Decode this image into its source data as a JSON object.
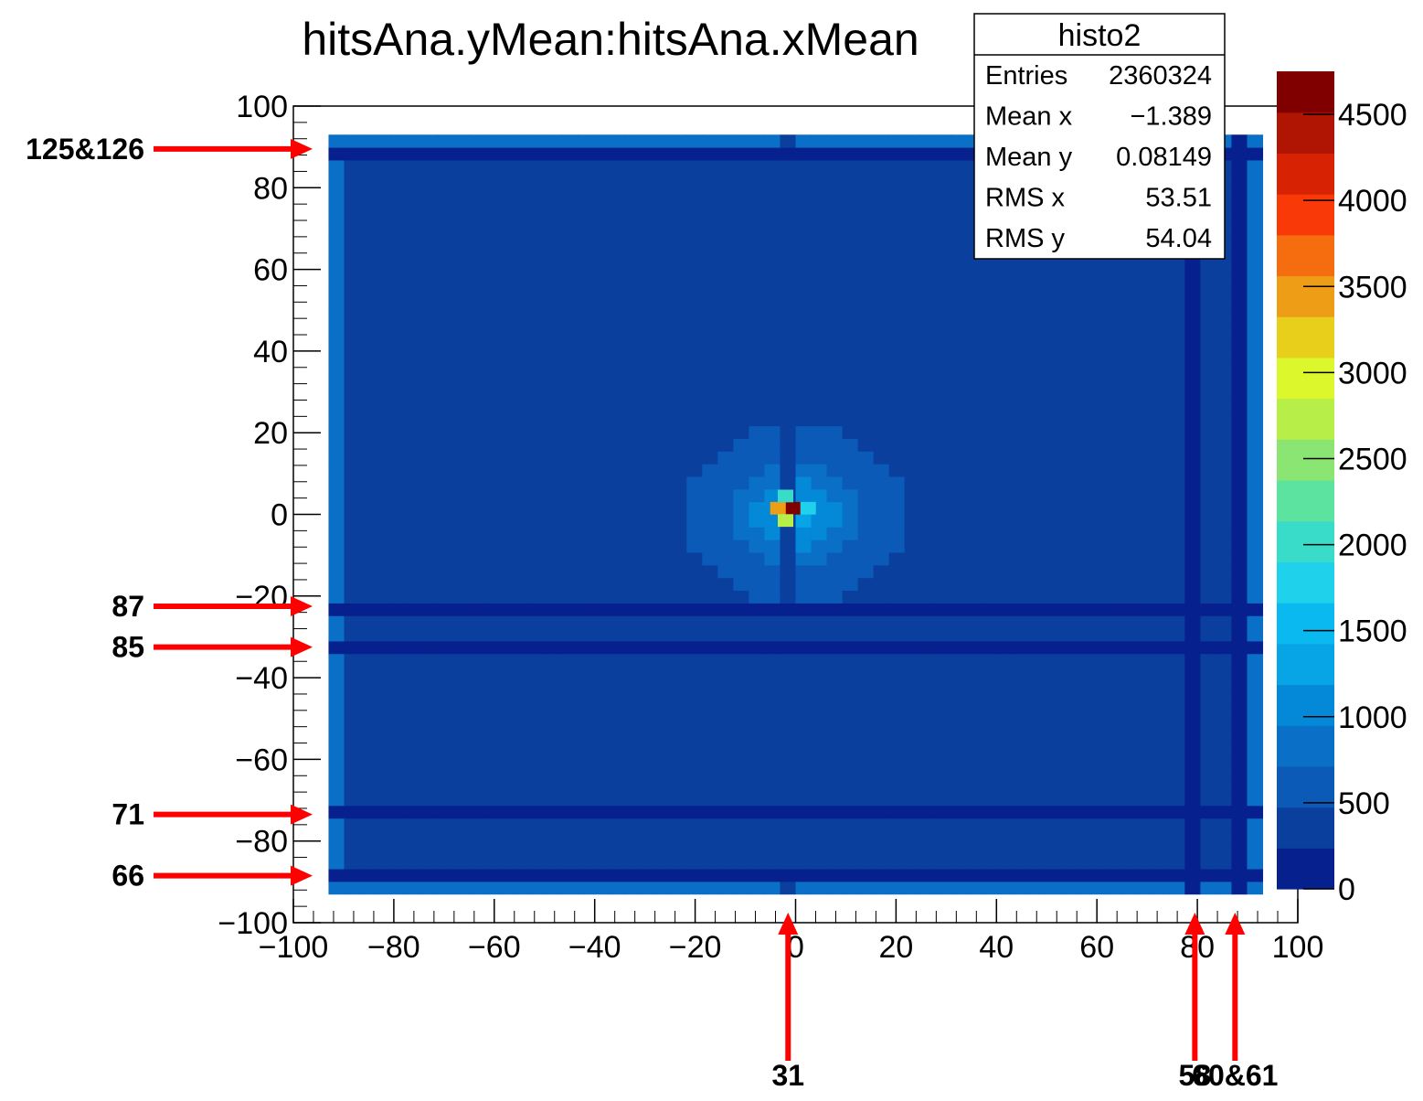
{
  "chart_data": {
    "type": "heatmap",
    "title": "hitsAna.yMean:hitsAna.xMean",
    "xlabel": "",
    "ylabel": "",
    "xlim": [
      -100,
      100
    ],
    "ylim": [
      -100,
      100
    ],
    "x_ticks": [
      -100,
      -80,
      -60,
      -40,
      -20,
      0,
      20,
      40,
      60,
      80,
      100
    ],
    "y_ticks": [
      -100,
      -80,
      -60,
      -40,
      -20,
      0,
      20,
      40,
      60,
      80,
      100
    ],
    "color_scale": {
      "min": 0,
      "max": 4750,
      "ticks": [
        0,
        500,
        1000,
        1500,
        2000,
        2500,
        3000,
        3500,
        4000,
        4500
      ],
      "colors": [
        "#06208e",
        "#0a3f9e",
        "#0b5ab8",
        "#0a6fc6",
        "#0389d7",
        "#07a4e6",
        "#0ab9ef",
        "#1fd1ea",
        "#39dcc8",
        "#5de3a0",
        "#8ae573",
        "#b7ee48",
        "#dcf72c",
        "#e8cf1c",
        "#ee9d17",
        "#f56d0f",
        "#f93a08",
        "#d72303",
        "#b01402",
        "#800000"
      ]
    },
    "background_value": 450,
    "features": {
      "vertical_stripes": [
        {
          "x": 79.5,
          "value": 180
        },
        {
          "x": 87.5,
          "value": 120
        },
        {
          "x": -0.5,
          "value": 350
        }
      ],
      "horizontal_stripes": [
        {
          "y": 89.5,
          "value": 150
        },
        {
          "y": -22.5,
          "value": 180
        },
        {
          "y": -32.5,
          "value": 200
        },
        {
          "y": -73.5,
          "value": 190
        },
        {
          "y": -88.5,
          "value": 200
        }
      ],
      "hotspot": {
        "x": 0,
        "y": 0,
        "peak": 4700,
        "cells": [
          {
            "x": -0.5,
            "y": 1.5,
            "value": 4700
          },
          {
            "x": -3.5,
            "y": 1.5,
            "value": 3400
          },
          {
            "x": -2,
            "y": -1.5,
            "value": 2800
          },
          {
            "x": -2,
            "y": 4.5,
            "value": 1900
          },
          {
            "x": 2.5,
            "y": 1.5,
            "value": 1700
          }
        ]
      }
    },
    "stats": {
      "name": "histo2",
      "rows": [
        {
          "label": "Entries",
          "value": "2360324"
        },
        {
          "label": "Mean x",
          "value": "−1.389"
        },
        {
          "label": "Mean y",
          "value": "0.08149"
        },
        {
          "label": "RMS x",
          "value": "53.51"
        },
        {
          "label": "RMS y",
          "value": "54.04"
        }
      ]
    },
    "annotations": [
      {
        "label": "125&126",
        "direction": "horizontal",
        "y": 89.5
      },
      {
        "label": "87",
        "direction": "horizontal",
        "y": -22.5
      },
      {
        "label": "85",
        "direction": "horizontal",
        "y": -32.5
      },
      {
        "label": "71",
        "direction": "horizontal",
        "y": -73.5
      },
      {
        "label": "66",
        "direction": "horizontal",
        "y": -88.5
      },
      {
        "label": "31",
        "direction": "vertical",
        "x": -1.5
      },
      {
        "label": "58",
        "direction": "vertical",
        "x": 79.5
      },
      {
        "label": "60&61",
        "direction": "vertical",
        "x": 87.5
      }
    ]
  }
}
